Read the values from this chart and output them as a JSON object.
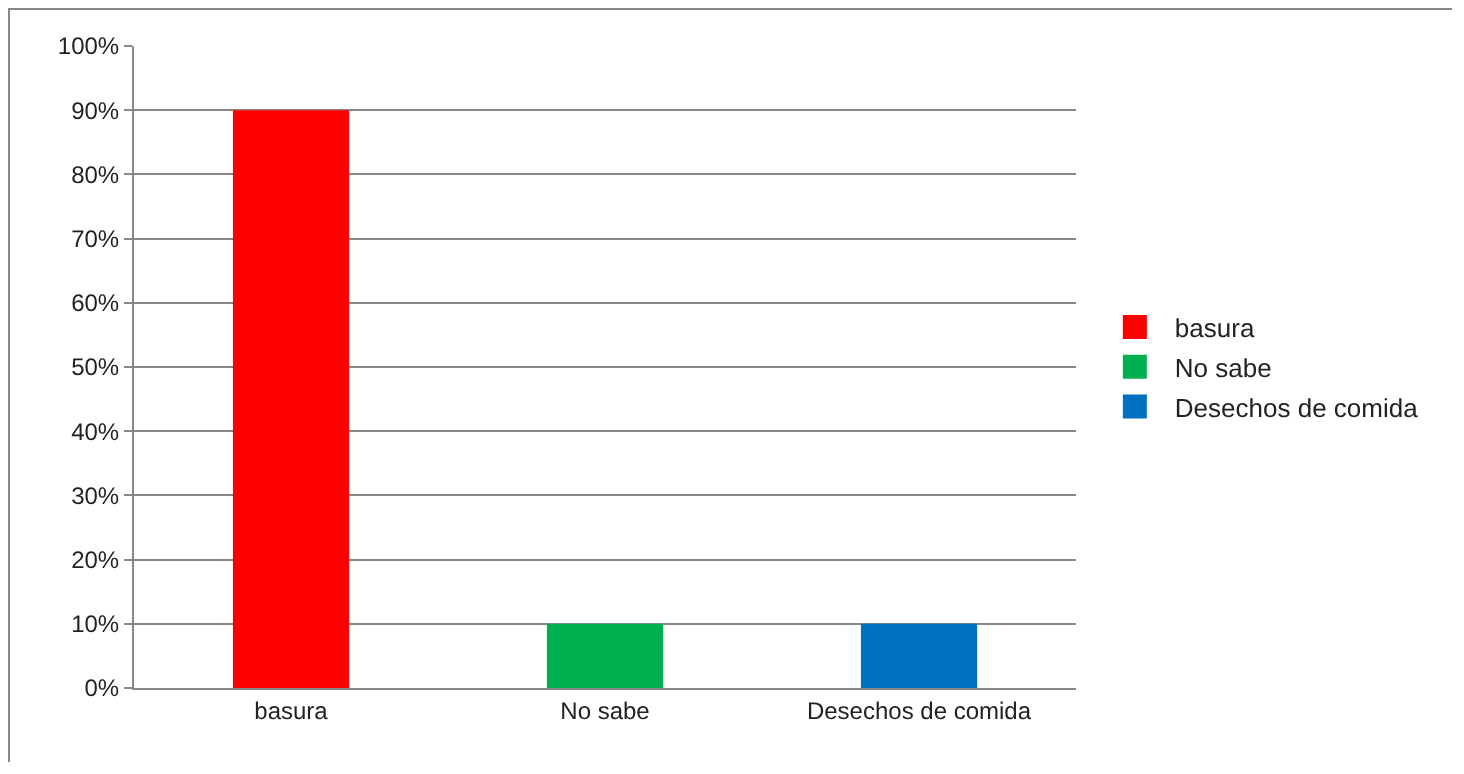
{
  "chart_data": {
    "type": "bar",
    "categories": [
      "basura",
      "No sabe",
      "Desechos de comida"
    ],
    "series": [
      {
        "name": "basura",
        "color": "#ff0000",
        "values": [
          90,
          null,
          null
        ]
      },
      {
        "name": "No sabe",
        "color": "#00b050",
        "values": [
          null,
          10,
          null
        ]
      },
      {
        "name": "Desechos de comida",
        "color": "#0070c0",
        "values": [
          null,
          null,
          10
        ]
      }
    ],
    "ylim": [
      0,
      100
    ],
    "yticks": [
      {
        "value": 0,
        "label": "0%"
      },
      {
        "value": 10,
        "label": "10%"
      },
      {
        "value": 20,
        "label": "20%"
      },
      {
        "value": 30,
        "label": "30%"
      },
      {
        "value": 40,
        "label": "40%"
      },
      {
        "value": 50,
        "label": "50%"
      },
      {
        "value": 60,
        "label": "60%"
      },
      {
        "value": 70,
        "label": "70%"
      },
      {
        "value": 80,
        "label": "80%"
      },
      {
        "value": 90,
        "label": "90%"
      },
      {
        "value": 100,
        "label": "100%"
      }
    ],
    "grid": "y",
    "legend": "right"
  }
}
